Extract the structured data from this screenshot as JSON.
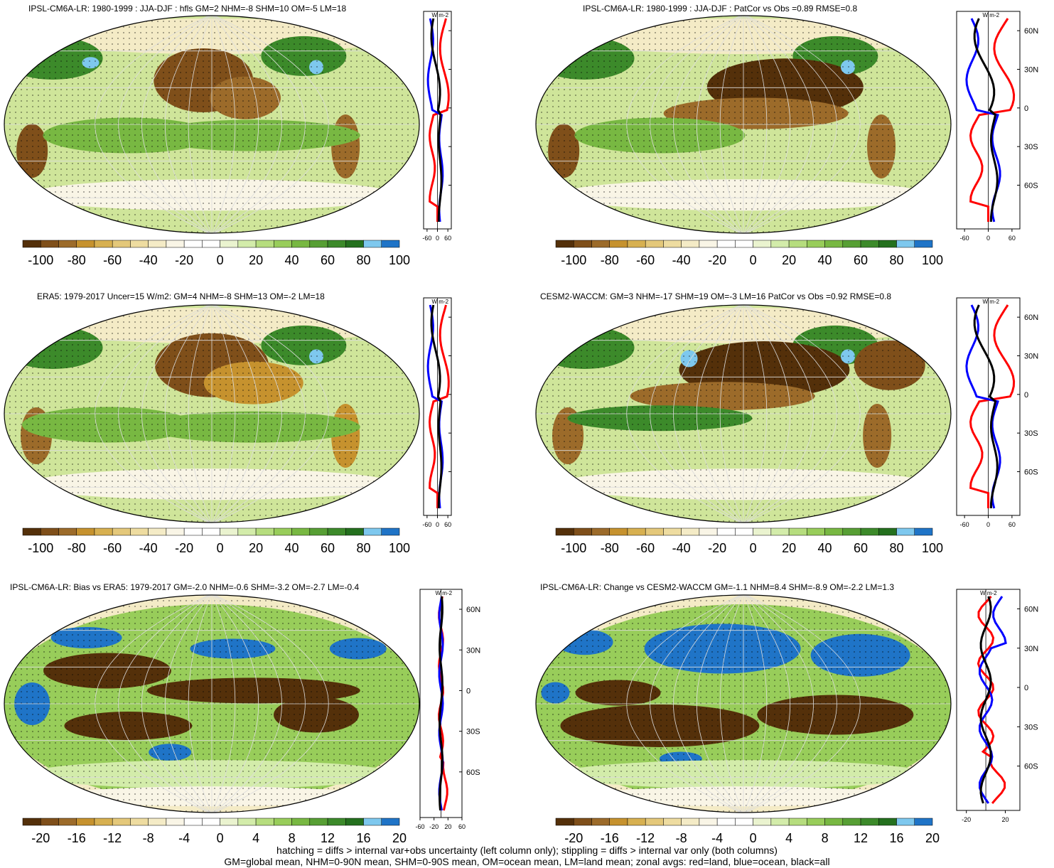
{
  "panels": [
    {
      "title": "IPSL-CM6A-LR: 1980-1999 : JJA-DJF : hfls GM=2 NHM=-8 SHM=10 OM=-5 LM=18",
      "scale": "full",
      "field": "a"
    },
    {
      "title": "IPSL-CM6A-LR: 1980-1999 : JJA-DJF : PatCor vs Obs =0.89 RMSE=0.8",
      "scale": "full",
      "field": "b"
    },
    {
      "title": "ERA5: 1979-2017 Uncer=15 W/m2: GM=4 NHM=-8 SHM=13 OM=-2 LM=18",
      "scale": "full",
      "field": "c"
    },
    {
      "title": "CESM2-WACCM: GM=3 NHM=-17 SHM=19 OM=-3 LM=16 PatCor vs Obs =0.92 RMSE=0.8",
      "scale": "full",
      "field": "d"
    },
    {
      "title": "IPSL-CM6A-LR: Bias vs ERA5: 1979-2017 GM=-2.0 NHM=-0.6 SHM=-3.2 OM=-2.7 LM=-0.4",
      "scale": "diff",
      "field": "e"
    },
    {
      "title": "IPSL-CM6A-LR: Change vs CESM2-WACCM GM=-1.1 NHM=8.4 SHM=-8.9 OM=-2.2 LM=1.3",
      "scale": "diff",
      "field": "f"
    }
  ],
  "zonal": {
    "unit_label": "W m-2",
    "lat_ticks": [
      "60N",
      "30N",
      "0",
      "30S",
      "60S"
    ],
    "x_ticks_full": [
      "-60",
      "0",
      "60"
    ],
    "x_ticks_diff_left": [
      "-60",
      "-20",
      "20",
      "60"
    ],
    "x_ticks_diff_right": [
      "-20",
      "20"
    ],
    "series_colors": {
      "land": "#ff0000",
      "ocean": "#0000ff",
      "all": "#000000"
    }
  },
  "colorbar": {
    "full_labels": [
      "-100",
      "-80",
      "-60",
      "-40",
      "-20",
      "0",
      "20",
      "40",
      "60",
      "80",
      "100"
    ],
    "diff_labels": [
      "-20",
      "-16",
      "-12",
      "-8",
      "-4",
      "0",
      "4",
      "8",
      "12",
      "16",
      "20"
    ],
    "colors": [
      "#54300a",
      "#7f4f1a",
      "#9c6b2a",
      "#c6922e",
      "#d7b050",
      "#e4c87a",
      "#eedca0",
      "#f4ebc6",
      "#f9f5e6",
      "#ffffff",
      "#ffffff",
      "#eaf3cf",
      "#d3ecaa",
      "#b6dd7e",
      "#98cd5a",
      "#78b842",
      "#579f34",
      "#3c8a2a",
      "#24701e",
      "#7ec8ee",
      "#1f74c7"
    ]
  },
  "footer": {
    "line1": "hatching = diffs > internal var+obs uncertainty (left column only); stippling = diffs > internal var only (both columns)",
    "line2": "GM=global mean, NHM=0-90N mean, SHM=0-90S mean, OM=ocean mean, LM=land mean; zonal avgs: red=land, blue=ocean, black=all"
  }
}
